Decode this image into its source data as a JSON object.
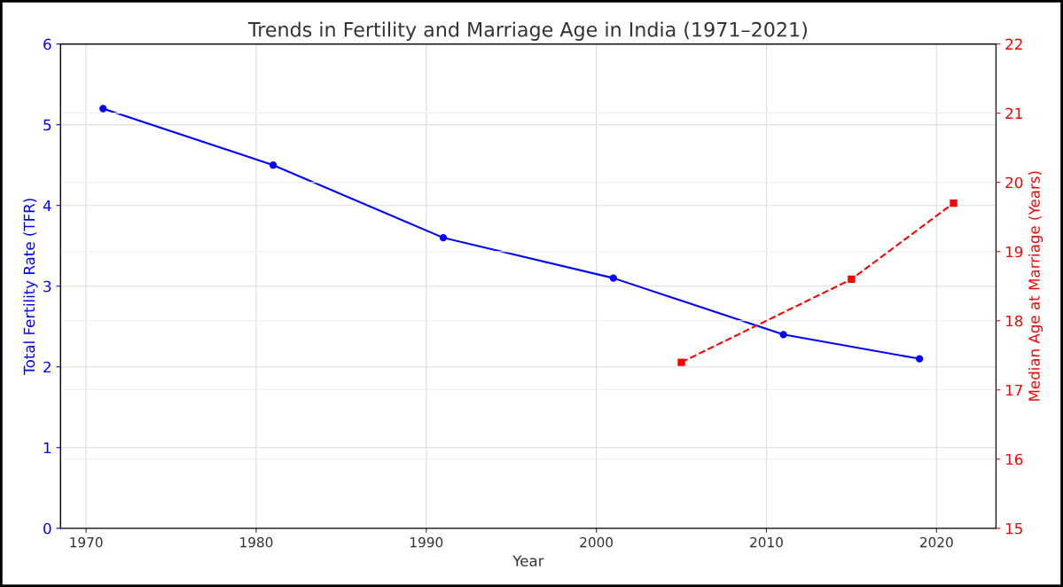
{
  "chart_data": {
    "type": "line",
    "title": "Trends in Fertility and Marriage Age in India (1971–2021)",
    "xlabel": "Year",
    "ylabel": "Total Fertility Rate (TFR)",
    "y2label": "Median Age at Marriage (Years)",
    "series": [
      {
        "x": [
          1971,
          1981,
          1991,
          2001,
          2011,
          2019
        ],
        "values": [
          5.2,
          4.5,
          3.6,
          3.1,
          2.4,
          2.1
        ],
        "color": "#0000ff",
        "marker": "circle",
        "line_style": "solid"
      },
      {
        "x": [
          2005,
          2015,
          2021
        ],
        "values": [
          17.4,
          18.6,
          19.7
        ],
        "color": "#ff0000",
        "marker": "square",
        "line_style": "dashed",
        "axis": "y2"
      }
    ],
    "xlim": [
      1968.5,
      2023.5
    ],
    "xticks": [
      1970,
      1980,
      1990,
      2000,
      2010,
      2020
    ],
    "ylim": [
      0,
      6
    ],
    "yticks": [
      0,
      1,
      2,
      3,
      4,
      5,
      6
    ],
    "y2lim": [
      15,
      22
    ],
    "y2ticks": [
      15,
      16,
      17,
      18,
      19,
      20,
      21,
      22
    ],
    "grid": true,
    "legend": false
  }
}
